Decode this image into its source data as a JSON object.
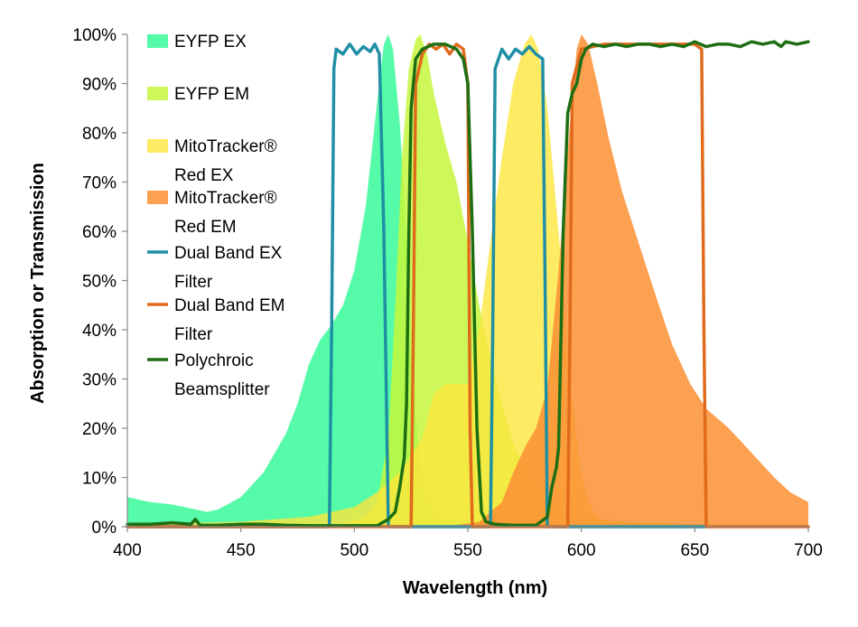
{
  "chart_data": {
    "type": "area",
    "title": "",
    "xlabel": "Wavelength (nm)",
    "ylabel": "Absorption or Transmission",
    "xlim": [
      400,
      700
    ],
    "ylim": [
      0,
      100
    ],
    "xticks": [
      400,
      450,
      500,
      550,
      600,
      650,
      700
    ],
    "xtick_labels": [
      "400",
      "450",
      "500",
      "550",
      "600",
      "650",
      "700"
    ],
    "yticks": [
      0,
      10,
      20,
      30,
      40,
      50,
      60,
      70,
      80,
      90,
      100
    ],
    "ytick_labels": [
      "0%",
      "10%",
      "20%",
      "30%",
      "40%",
      "50%",
      "60%",
      "70%",
      "80%",
      "90%",
      "100%"
    ],
    "grid": false,
    "legend_position": "top-left (inside plot)",
    "series": [
      {
        "name": "EYFP EX",
        "label_lines": [
          "EYFP EX"
        ],
        "kind": "area",
        "color": "#3dfa9c",
        "opacity": 0.88,
        "points": [
          [
            400,
            6
          ],
          [
            405,
            5.5
          ],
          [
            410,
            5
          ],
          [
            420,
            4.5
          ],
          [
            430,
            3.5
          ],
          [
            435,
            3
          ],
          [
            440,
            3.5
          ],
          [
            450,
            6
          ],
          [
            460,
            11
          ],
          [
            470,
            19
          ],
          [
            475,
            25
          ],
          [
            480,
            33
          ],
          [
            485,
            38
          ],
          [
            490,
            41
          ],
          [
            495,
            45
          ],
          [
            500,
            52
          ],
          [
            505,
            65
          ],
          [
            510,
            86
          ],
          [
            513,
            98
          ],
          [
            515,
            100
          ],
          [
            517,
            97
          ],
          [
            520,
            82
          ],
          [
            523,
            60
          ],
          [
            525,
            40
          ],
          [
            527,
            22
          ],
          [
            530,
            8
          ],
          [
            535,
            3
          ],
          [
            540,
            2
          ],
          [
            560,
            1
          ],
          [
            580,
            0.5
          ],
          [
            600,
            0
          ]
        ]
      },
      {
        "name": "EYFP EM",
        "label_lines": [
          "EYFP EM"
        ],
        "kind": "area",
        "color": "#c6f73c",
        "opacity": 0.85,
        "points": [
          [
            490,
            0
          ],
          [
            505,
            2
          ],
          [
            510,
            5
          ],
          [
            515,
            18
          ],
          [
            518,
            45
          ],
          [
            521,
            75
          ],
          [
            524,
            93
          ],
          [
            527,
            99
          ],
          [
            529,
            100
          ],
          [
            532,
            96
          ],
          [
            535,
            88
          ],
          [
            540,
            78
          ],
          [
            545,
            70
          ],
          [
            550,
            58
          ],
          [
            555,
            45
          ],
          [
            560,
            34
          ],
          [
            565,
            25
          ],
          [
            570,
            17
          ],
          [
            575,
            12
          ],
          [
            580,
            8
          ],
          [
            590,
            4
          ],
          [
            600,
            2
          ],
          [
            620,
            1
          ],
          [
            650,
            0.5
          ],
          [
            700,
            0
          ]
        ]
      },
      {
        "name": "MitoTracker® Red EX",
        "label_lines": [
          "MitoTracker®",
          "Red EX"
        ],
        "kind": "area",
        "color": "#fde63d",
        "opacity": 0.8,
        "points": [
          [
            400,
            0.5
          ],
          [
            450,
            1
          ],
          [
            480,
            2
          ],
          [
            500,
            4
          ],
          [
            510,
            7
          ],
          [
            520,
            11
          ],
          [
            530,
            18
          ],
          [
            535,
            27
          ],
          [
            540,
            29
          ],
          [
            545,
            29
          ],
          [
            550,
            29
          ],
          [
            555,
            40
          ],
          [
            560,
            58
          ],
          [
            565,
            75
          ],
          [
            570,
            90
          ],
          [
            575,
            98
          ],
          [
            578,
            100
          ],
          [
            581,
            97
          ],
          [
            585,
            85
          ],
          [
            590,
            60
          ],
          [
            595,
            30
          ],
          [
            600,
            10
          ],
          [
            605,
            3
          ],
          [
            610,
            1
          ],
          [
            620,
            0
          ]
        ]
      },
      {
        "name": "MitoTracker® Red EM",
        "label_lines": [
          "MitoTracker®",
          "Red EM"
        ],
        "kind": "area",
        "color": "#fb8f34",
        "opacity": 0.85,
        "points": [
          [
            540,
            0
          ],
          [
            555,
            1
          ],
          [
            565,
            5
          ],
          [
            570,
            11
          ],
          [
            575,
            16
          ],
          [
            580,
            20
          ],
          [
            585,
            28
          ],
          [
            590,
            52
          ],
          [
            595,
            82
          ],
          [
            598,
            97
          ],
          [
            600,
            100
          ],
          [
            603,
            98
          ],
          [
            607,
            90
          ],
          [
            612,
            79
          ],
          [
            618,
            68
          ],
          [
            625,
            58
          ],
          [
            632,
            48
          ],
          [
            640,
            37
          ],
          [
            648,
            29
          ],
          [
            655,
            24
          ],
          [
            665,
            20
          ],
          [
            675,
            15
          ],
          [
            685,
            10
          ],
          [
            692,
            7
          ],
          [
            700,
            5
          ],
          [
            700,
            0
          ]
        ]
      },
      {
        "name": "Dual Band EX Filter",
        "label_lines": [
          "Dual Band EX",
          "Filter"
        ],
        "kind": "line",
        "color": "#1f8fa4",
        "points": [
          [
            400,
            0
          ],
          [
            489,
            0
          ],
          [
            490,
            40
          ],
          [
            491,
            93
          ],
          [
            492,
            97
          ],
          [
            495,
            96
          ],
          [
            498,
            98
          ],
          [
            501,
            96
          ],
          [
            504,
            97.5
          ],
          [
            507,
            96.5
          ],
          [
            509,
            98
          ],
          [
            511,
            96
          ],
          [
            513,
            60
          ],
          [
            515,
            0
          ],
          [
            560,
            0
          ],
          [
            561,
            40
          ],
          [
            562,
            93
          ],
          [
            565,
            97
          ],
          [
            568,
            95
          ],
          [
            571,
            97
          ],
          [
            574,
            96
          ],
          [
            577,
            97.5
          ],
          [
            580,
            96
          ],
          [
            583,
            95
          ],
          [
            584,
            50
          ],
          [
            585,
            0
          ],
          [
            655,
            0
          ]
        ]
      },
      {
        "name": "Dual Band EM Filter",
        "label_lines": [
          "Dual Band EM",
          "Filter"
        ],
        "kind": "line",
        "color": "#e06b1c",
        "points": [
          [
            400,
            0
          ],
          [
            525,
            0
          ],
          [
            526,
            40
          ],
          [
            527,
            90
          ],
          [
            530,
            96
          ],
          [
            533,
            98
          ],
          [
            536,
            97
          ],
          [
            539,
            98
          ],
          [
            542,
            96
          ],
          [
            545,
            98
          ],
          [
            548,
            97
          ],
          [
            550,
            90
          ],
          [
            551,
            20
          ],
          [
            552,
            0
          ],
          [
            594,
            0
          ],
          [
            595,
            40
          ],
          [
            596,
            90
          ],
          [
            600,
            97
          ],
          [
            610,
            98
          ],
          [
            620,
            98
          ],
          [
            630,
            98
          ],
          [
            640,
            98
          ],
          [
            650,
            98
          ],
          [
            653,
            97
          ],
          [
            654,
            40
          ],
          [
            655,
            0
          ],
          [
            700,
            0
          ]
        ]
      },
      {
        "name": "Polychroic Beamsplitter",
        "label_lines": [
          "Polychroic",
          "Beamsplitter"
        ],
        "kind": "line",
        "color": "#1e6e13",
        "points": [
          [
            400,
            0.5
          ],
          [
            410,
            0.5
          ],
          [
            420,
            0.8
          ],
          [
            428,
            0.5
          ],
          [
            430,
            1.5
          ],
          [
            432,
            0.3
          ],
          [
            440,
            0.3
          ],
          [
            450,
            0.5
          ],
          [
            460,
            0.5
          ],
          [
            470,
            0.3
          ],
          [
            480,
            0.2
          ],
          [
            490,
            0.2
          ],
          [
            500,
            0.2
          ],
          [
            510,
            0.2
          ],
          [
            515,
            1.5
          ],
          [
            518,
            3
          ],
          [
            520,
            8
          ],
          [
            522,
            14
          ],
          [
            523,
            25
          ],
          [
            524,
            60
          ],
          [
            525,
            85
          ],
          [
            527,
            95
          ],
          [
            530,
            97
          ],
          [
            535,
            98
          ],
          [
            540,
            98
          ],
          [
            545,
            97
          ],
          [
            548,
            95
          ],
          [
            550,
            90
          ],
          [
            552,
            60
          ],
          [
            554,
            20
          ],
          [
            556,
            3
          ],
          [
            558,
            1
          ],
          [
            562,
            0.5
          ],
          [
            570,
            0.3
          ],
          [
            580,
            0.3
          ],
          [
            585,
            2
          ],
          [
            587,
            8
          ],
          [
            589,
            12
          ],
          [
            590,
            16
          ],
          [
            592,
            60
          ],
          [
            594,
            84
          ],
          [
            596,
            88
          ],
          [
            598,
            90
          ],
          [
            600,
            95
          ],
          [
            602,
            97
          ],
          [
            605,
            98
          ],
          [
            610,
            97.5
          ],
          [
            615,
            98
          ],
          [
            620,
            97.5
          ],
          [
            625,
            98
          ],
          [
            630,
            98
          ],
          [
            635,
            97.5
          ],
          [
            640,
            98
          ],
          [
            645,
            97.5
          ],
          [
            650,
            98.5
          ],
          [
            655,
            97.5
          ],
          [
            660,
            98
          ],
          [
            665,
            98
          ],
          [
            670,
            97.5
          ],
          [
            675,
            98.5
          ],
          [
            680,
            98
          ],
          [
            685,
            98.5
          ],
          [
            688,
            97.5
          ],
          [
            690,
            98.5
          ],
          [
            695,
            98
          ],
          [
            700,
            98.5
          ]
        ]
      }
    ]
  }
}
